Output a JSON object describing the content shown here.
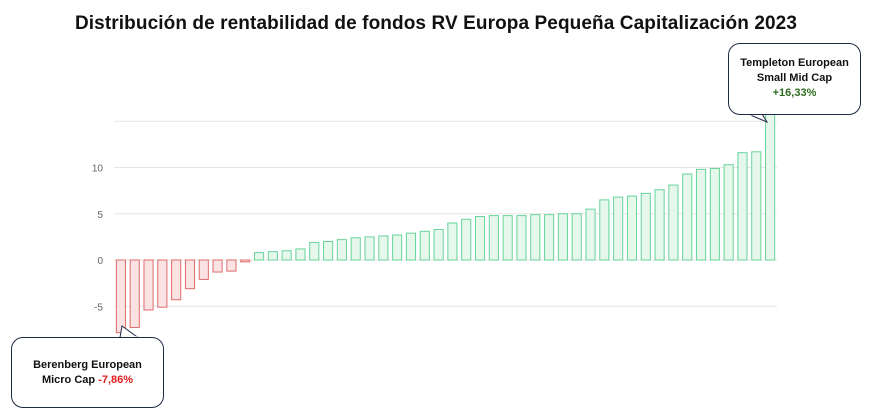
{
  "chart_data": {
    "type": "bar",
    "title": "Distribución de rentabilidad de fondos RV Europa Pequeña Capitalización 2023",
    "xlabel": "",
    "ylabel": "",
    "ylim": [
      -8.5,
      17
    ],
    "yticks": [
      10,
      5,
      0,
      -5
    ],
    "tick_labels": [
      "10",
      "5",
      "0",
      "-5"
    ],
    "grid": true,
    "values": [
      -7.86,
      -7.3,
      -5.4,
      -5.1,
      -4.3,
      -3.1,
      -2.1,
      -1.3,
      -1.2,
      -0.2,
      0.8,
      0.9,
      1.0,
      1.2,
      1.9,
      2.0,
      2.2,
      2.4,
      2.5,
      2.6,
      2.7,
      2.9,
      3.1,
      3.3,
      4.0,
      4.4,
      4.7,
      4.8,
      4.8,
      4.8,
      4.9,
      4.9,
      5.0,
      5.0,
      5.5,
      6.5,
      6.8,
      6.9,
      7.2,
      7.6,
      8.1,
      9.3,
      9.8,
      9.9,
      10.3,
      11.6,
      11.7,
      16.33
    ],
    "colors": {
      "positive_fill": "#e6f7ec",
      "positive_stroke": "#67d49a",
      "negative_fill": "#fbe3e3",
      "negative_stroke": "#e06b6b",
      "grid": "#e5e5e5",
      "axis_text": "#666666"
    },
    "annotations": {
      "best": {
        "name_line1": "Templeton European",
        "name_line2": "Small Mid Cap",
        "value": "+16,33%"
      },
      "worst": {
        "name_line1": "Berenberg European",
        "name_line2": "Micro Cap",
        "value": "-7,86%"
      }
    }
  }
}
